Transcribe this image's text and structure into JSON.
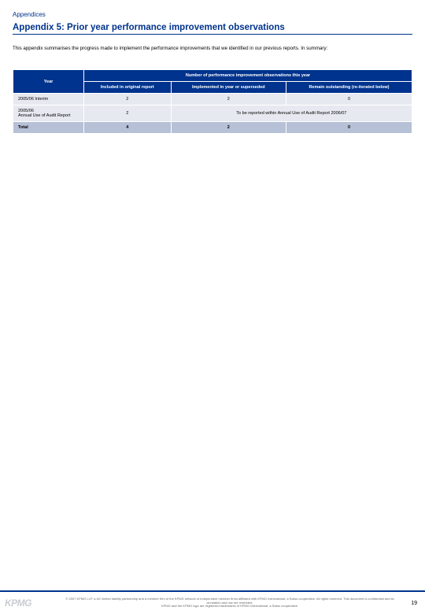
{
  "colors": {
    "brand_navy": "#00338d",
    "row_light": "#e6e9f0",
    "row_total": "#b6c0d6",
    "logo_grey": "#c9ccd3",
    "footer_text": "#666666",
    "background": "#ffffff"
  },
  "typography": {
    "section_label_fontsize": 8,
    "title_fontsize": 11.5,
    "intro_fontsize": 6.2,
    "table_fontsize": 5.5,
    "footer_fontsize": 4,
    "page_num_fontsize": 7
  },
  "section_label": "Appendices",
  "title": "Appendix 5: Prior year performance improvement observations",
  "intro": "This appendix summarises the progress made to implement the performance improvements that we identified in our previous reports. In summary:",
  "table": {
    "type": "table",
    "header_group": "Number of performance improvement observations this year",
    "col_year": "Year",
    "col_included": "Included in original report",
    "col_implemented": "Implemented in year or superseded",
    "col_remain": "Remain outstanding (re-iterated below)",
    "rows": [
      {
        "label": "2005/06 Interim",
        "included": "2",
        "implemented": "2",
        "remain": "0"
      }
    ],
    "merged_row": {
      "label": "2005/06",
      "label2": "Annual Use of Audit Report",
      "included": "2",
      "note": "To be reported within Annual Use of Audit Report 2006/07"
    },
    "total_row": {
      "label": "Total",
      "included": "4",
      "implemented": "2",
      "remain": "0"
    }
  },
  "footer": {
    "copyright_line1": "© 2007 KPMG LLP, a UK limited liability partnership and a member firm of the KPMG network of independent member firms affiliated with KPMG International, a Swiss cooperative. All rights reserved. This document is confidential and its circulation and use are restricted.",
    "copyright_line2": "KPMG and the KPMG logo are registered trademarks of KPMG International, a Swiss cooperative.",
    "page_number": "19",
    "logo_text": "KPMG"
  }
}
